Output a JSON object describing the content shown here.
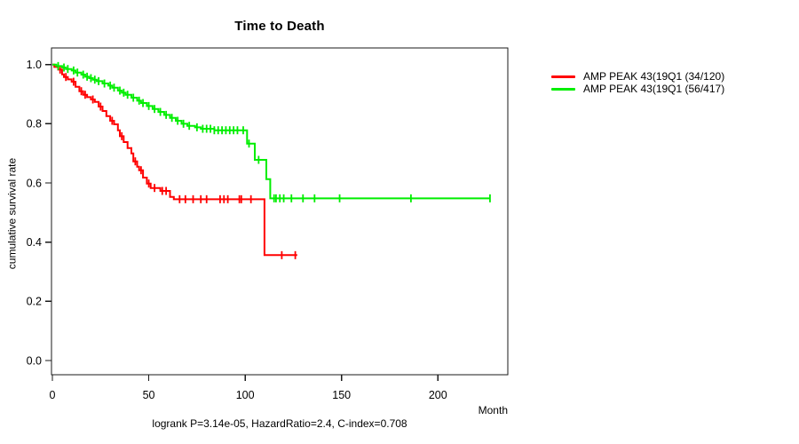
{
  "figure": {
    "title": "Time to Death",
    "caption": "logrank P=3.14e-05, HazardRatio=2.4, C-index=0.708",
    "xlabel": "Month",
    "ylabel": "cumulative survival rate"
  },
  "legend": {
    "position": "right-outside",
    "items": [
      {
        "label": "AMP PEAK 43(19Q1 (34/120)",
        "color": "#ff0000"
      },
      {
        "label": "AMP PEAK 43(19Q1 (56/417)",
        "color": "#00ee00"
      }
    ]
  },
  "chart_data": {
    "type": "line",
    "subtype": "kaplan-meier-step-function",
    "title": "Time to Death",
    "xlabel": "Month",
    "ylabel": "cumulative survival rate",
    "caption": "logrank P=3.14e-05, HazardRatio=2.4, C-index=0.708",
    "xlim": [
      0,
      236
    ],
    "ylim": [
      0.0,
      1.0
    ],
    "grid": false,
    "legend_position": "right-outside",
    "x_ticks": [
      {
        "v": 0,
        "label": "0"
      },
      {
        "v": 50,
        "label": "50"
      },
      {
        "v": 100,
        "label": "100"
      },
      {
        "v": 150,
        "label": "150"
      },
      {
        "v": 200,
        "label": "200"
      }
    ],
    "y_ticks": [
      {
        "v": 0.0,
        "label": "0.0"
      },
      {
        "v": 0.2,
        "label": "0.2"
      },
      {
        "v": 0.4,
        "label": "0.4"
      },
      {
        "v": 0.6,
        "label": "0.6"
      },
      {
        "v": 0.8,
        "label": "0.8"
      },
      {
        "v": 1.0,
        "label": "1.0"
      }
    ],
    "series": [
      {
        "name": "AMP PEAK 43(19Q1 (34/120)",
        "color": "#ff0000",
        "events_total": "34/120",
        "end_month": 127,
        "steps": [
          [
            0,
            1.0
          ],
          [
            1,
            0.992
          ],
          [
            3,
            0.983
          ],
          [
            5,
            0.967
          ],
          [
            6,
            0.958
          ],
          [
            8,
            0.95
          ],
          [
            10,
            0.942
          ],
          [
            12,
            0.925
          ],
          [
            14,
            0.91
          ],
          [
            16,
            0.898
          ],
          [
            18,
            0.89
          ],
          [
            20,
            0.882
          ],
          [
            22,
            0.874
          ],
          [
            24,
            0.858
          ],
          [
            26,
            0.843
          ],
          [
            28,
            0.826
          ],
          [
            30,
            0.81
          ],
          [
            32,
            0.798
          ],
          [
            34,
            0.778
          ],
          [
            35,
            0.758
          ],
          [
            37,
            0.738
          ],
          [
            39,
            0.718
          ],
          [
            41,
            0.7
          ],
          [
            42,
            0.673
          ],
          [
            44,
            0.655
          ],
          [
            45,
            0.643
          ],
          [
            47,
            0.618
          ],
          [
            49,
            0.598
          ],
          [
            51,
            0.583
          ],
          [
            56,
            0.573
          ],
          [
            61,
            0.553
          ],
          [
            63,
            0.545
          ],
          [
            110,
            0.356
          ]
        ],
        "censor_months": [
          4,
          7,
          11,
          15,
          17,
          21,
          25,
          31,
          36,
          43,
          46,
          50,
          53,
          57,
          59,
          66,
          69,
          73,
          77,
          80,
          87,
          89,
          91,
          97,
          98,
          103,
          119,
          126
        ]
      },
      {
        "name": "AMP PEAK 43(19Q1 (56/417)",
        "color": "#00ee00",
        "events_total": "56/417",
        "end_month": 227,
        "steps": [
          [
            0,
            1.0
          ],
          [
            2,
            0.995
          ],
          [
            5,
            0.99
          ],
          [
            7,
            0.985
          ],
          [
            10,
            0.98
          ],
          [
            12,
            0.973
          ],
          [
            15,
            0.966
          ],
          [
            17,
            0.959
          ],
          [
            19,
            0.954
          ],
          [
            21,
            0.949
          ],
          [
            23,
            0.944
          ],
          [
            26,
            0.936
          ],
          [
            29,
            0.929
          ],
          [
            31,
            0.922
          ],
          [
            34,
            0.912
          ],
          [
            36,
            0.905
          ],
          [
            38,
            0.898
          ],
          [
            41,
            0.888
          ],
          [
            44,
            0.878
          ],
          [
            46,
            0.87
          ],
          [
            49,
            0.86
          ],
          [
            52,
            0.85
          ],
          [
            55,
            0.84
          ],
          [
            58,
            0.83
          ],
          [
            61,
            0.82
          ],
          [
            64,
            0.81
          ],
          [
            67,
            0.8
          ],
          [
            70,
            0.793
          ],
          [
            74,
            0.788
          ],
          [
            77,
            0.783
          ],
          [
            84,
            0.778
          ],
          [
            101,
            0.733
          ],
          [
            105,
            0.678
          ],
          [
            111,
            0.613
          ],
          [
            113,
            0.548
          ]
        ],
        "censor_months": [
          3,
          6,
          8,
          11,
          13,
          16,
          18,
          20,
          22,
          24,
          27,
          30,
          32,
          35,
          37,
          39,
          42,
          45,
          47,
          50,
          53,
          56,
          59,
          62,
          65,
          68,
          71,
          75,
          78,
          80,
          82,
          84,
          86,
          88,
          90,
          92,
          94,
          96,
          99,
          102,
          107,
          115,
          116,
          118,
          120,
          124,
          130,
          136,
          149,
          186,
          227
        ]
      }
    ]
  }
}
